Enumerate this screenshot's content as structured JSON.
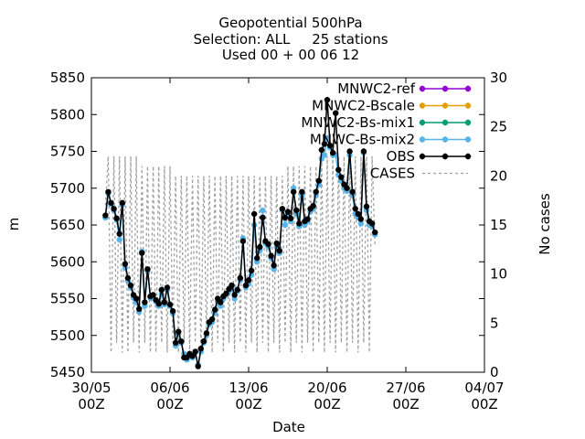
{
  "chart_data": {
    "type": "line",
    "title": [
      "Geopotential 500hPa",
      "Selection: ALL     25 stations",
      "Used 00 + 00 06 12"
    ],
    "xlabel": "Date",
    "ylabel": "m",
    "y2label": "No cases",
    "x_range": [
      "2018-05-30 00:00",
      "2018-07-04 00:00"
    ],
    "x_ticks": [
      {
        "date": "2018-05-30 00:00",
        "label": [
          "30/05",
          "00Z"
        ]
      },
      {
        "date": "2018-06-06 00:00",
        "label": [
          "06/06",
          "00Z"
        ]
      },
      {
        "date": "2018-06-13 00:00",
        "label": [
          "13/06",
          "00Z"
        ]
      },
      {
        "date": "2018-06-20 00:00",
        "label": [
          "20/06",
          "00Z"
        ]
      },
      {
        "date": "2018-06-27 00:00",
        "label": [
          "27/06",
          "00Z"
        ]
      },
      {
        "date": "2018-07-04 00:00",
        "label": [
          "04/07",
          "00Z"
        ]
      }
    ],
    "ylim": [
      5450,
      5850
    ],
    "y_ticks": [
      5450,
      5500,
      5550,
      5600,
      5650,
      5700,
      5750,
      5800,
      5850
    ],
    "y2lim": [
      0,
      30
    ],
    "y2_ticks": [
      0,
      5,
      10,
      15,
      20,
      25,
      30
    ],
    "grid": false,
    "legend_position": "top-right",
    "series": [
      {
        "name": "MNWC2-ref",
        "color": "#9400d3",
        "marker": "star",
        "values": []
      },
      {
        "name": "MNWC2-Bscale",
        "color": "#e69f00",
        "marker": "star",
        "values": []
      },
      {
        "name": "MNWC2-Bs-mix1",
        "color": "#009e73",
        "marker": "star",
        "values": []
      },
      {
        "name": "MNWC-Bs-mix2",
        "color": "#56b4e9",
        "marker": "star",
        "values": [
          5660,
          5693,
          5678,
          5670,
          5657,
          5630,
          5677,
          5592,
          5574,
          5565,
          5551,
          5545,
          5532,
          5614,
          5540,
          5588,
          5551,
          5551,
          5546,
          5540,
          5556,
          5542,
          5562,
          5540,
          5530,
          5486,
          5502,
          5490,
          5475,
          5467,
          5474,
          5470,
          5477,
          5460,
          5478,
          5490,
          5500,
          5515,
          5518,
          5530,
          5546,
          5540,
          5550,
          5555,
          5560,
          5565,
          5550,
          5560,
          5575,
          5632,
          5565,
          5570,
          5582,
          5650,
          5600,
          5615,
          5670,
          5625,
          5620,
          5605,
          5590,
          5620,
          5612,
          5670,
          5650,
          5665,
          5655,
          5700,
          5665,
          5648,
          5690,
          5650,
          5655,
          5668,
          5672,
          5690,
          5705,
          5740,
          5745,
          5768,
          5755,
          5745,
          5745,
          5718,
          5710,
          5700,
          5696,
          5745,
          5690,
          5665,
          5660,
          5652,
          5748,
          5670,
          5650,
          5648,
          5637
        ]
      },
      {
        "name": "OBS",
        "color": "#000000",
        "marker": "star",
        "values": [
          5663,
          5695,
          5680,
          5672,
          5659,
          5638,
          5680,
          5597,
          5578,
          5568,
          5555,
          5550,
          5536,
          5612,
          5545,
          5590,
          5553,
          5555,
          5548,
          5543,
          5562,
          5545,
          5565,
          5542,
          5533,
          5490,
          5505,
          5492,
          5470,
          5470,
          5475,
          5472,
          5478,
          5458,
          5482,
          5492,
          5503,
          5518,
          5522,
          5535,
          5550,
          5545,
          5553,
          5557,
          5563,
          5568,
          5555,
          5562,
          5578,
          5628,
          5568,
          5575,
          5588,
          5665,
          5605,
          5620,
          5660,
          5628,
          5624,
          5608,
          5595,
          5625,
          5615,
          5672,
          5660,
          5668,
          5659,
          5695,
          5670,
          5652,
          5695,
          5655,
          5658,
          5672,
          5676,
          5695,
          5710,
          5752,
          5760,
          5820,
          5758,
          5748,
          5802,
          5725,
          5715,
          5705,
          5700,
          5750,
          5695,
          5672,
          5665,
          5658,
          5750,
          5675,
          5655,
          5652,
          5640
        ]
      },
      {
        "name": "CASES",
        "color": "#a0a0a0",
        "dashed": true,
        "axis": "y2",
        "values": [
          17,
          22,
          2,
          22,
          3,
          22,
          2,
          22,
          2,
          22,
          3,
          22,
          2,
          21,
          3,
          21,
          2,
          21,
          2,
          21,
          3,
          21,
          2,
          21,
          3,
          20,
          2,
          20,
          3,
          20,
          2,
          20,
          3,
          20,
          2,
          20,
          3,
          20,
          2,
          20,
          3,
          20,
          2,
          20,
          3,
          20,
          2,
          20,
          3,
          20,
          2,
          20,
          3,
          20,
          2,
          20,
          3,
          20,
          2,
          20,
          3,
          20,
          2,
          20,
          3,
          21,
          2,
          21,
          3,
          21,
          2,
          21,
          3,
          21,
          2,
          21,
          3,
          22,
          2,
          22,
          3,
          22,
          2,
          22,
          3,
          22,
          2,
          22,
          3,
          22,
          2,
          22,
          3,
          22,
          2,
          22,
          13
        ]
      }
    ]
  }
}
